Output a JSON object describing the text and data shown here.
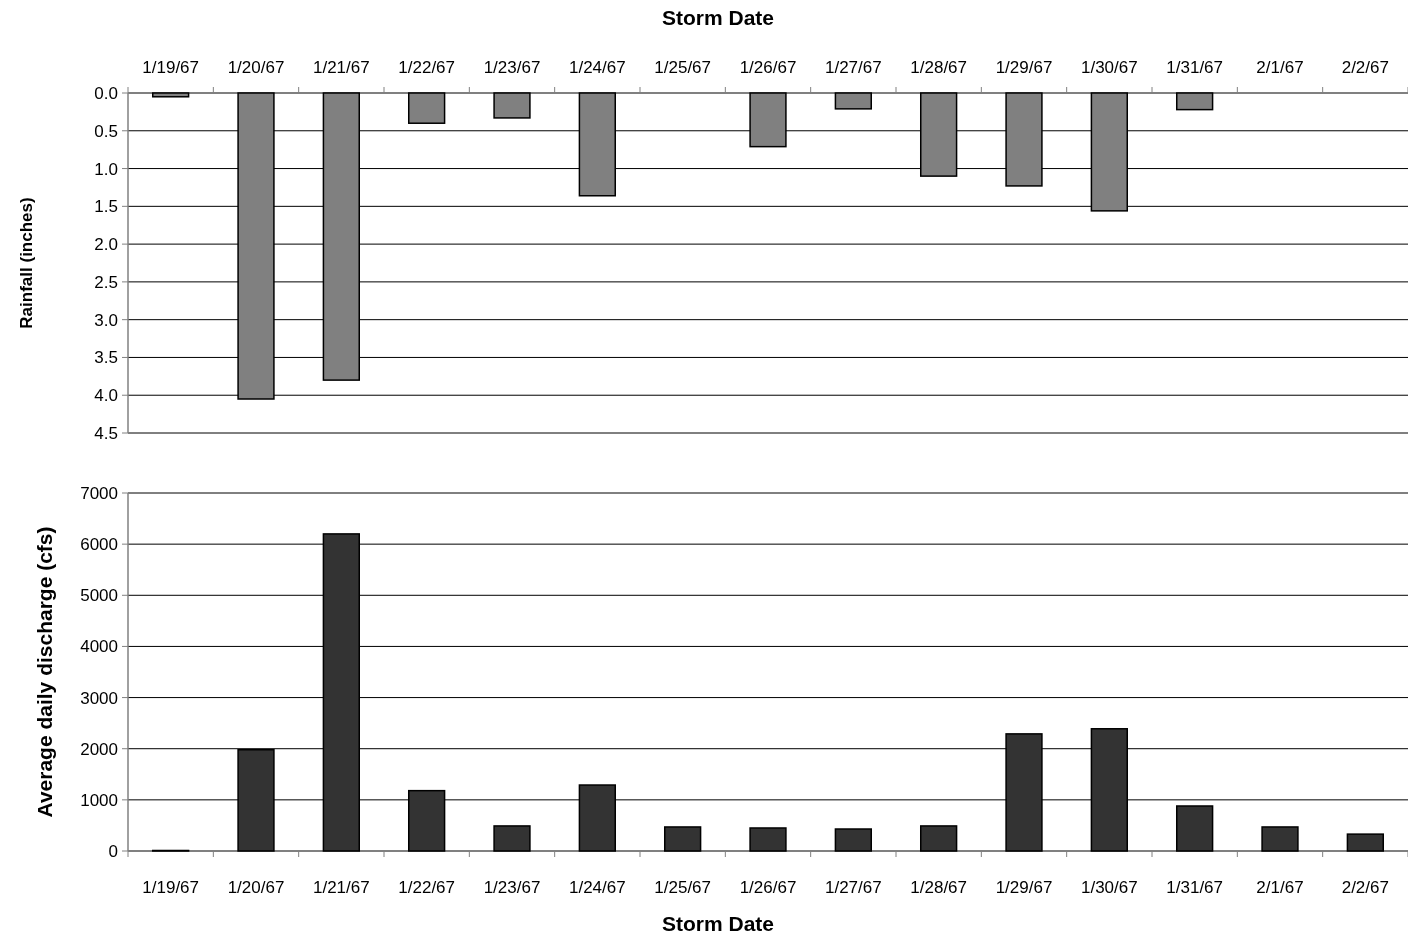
{
  "chart_data": [
    {
      "type": "bar",
      "xlabel": "Storm Date",
      "ylabel": "Rainfall (inches)",
      "categories": [
        "1/19/67",
        "1/20/67",
        "1/21/67",
        "1/22/67",
        "1/23/67",
        "1/24/67",
        "1/25/67",
        "1/26/67",
        "1/27/67",
        "1/28/67",
        "1/29/67",
        "1/30/67",
        "1/31/67",
        "2/1/67",
        "2/2/67"
      ],
      "series": [
        {
          "color": "#808080",
          "values": [
            0.05,
            4.05,
            3.8,
            0.4,
            0.33,
            1.36,
            null,
            0.71,
            0.21,
            1.1,
            1.23,
            1.56,
            0.22,
            null,
            null
          ]
        }
      ],
      "ylim": [
        4.5,
        0
      ],
      "yticks": [
        {
          "value": 0,
          "label": "0.0"
        },
        0.5,
        {
          "value": 1,
          "label": "1.0"
        },
        1.5,
        {
          "value": 2,
          "label": "2.0"
        },
        2.5,
        {
          "value": 3,
          "label": "3.0"
        },
        3.5,
        {
          "value": 4,
          "label": "4.0"
        },
        4.5
      ],
      "grid": "y"
    },
    {
      "type": "bar",
      "xlabel": "Storm Date",
      "ylabel": "Average daily discharge (cfs)",
      "categories": [
        "1/19/67",
        "1/20/67",
        "1/21/67",
        "1/22/67",
        "1/23/67",
        "1/24/67",
        "1/25/67",
        "1/26/67",
        "1/27/67",
        "1/28/67",
        "1/29/67",
        "1/30/67",
        "1/31/67",
        "2/1/67",
        "2/2/67"
      ],
      "series": [
        {
          "color": "#333333",
          "values": [
            10,
            1980,
            6200,
            1180,
            490,
            1290,
            470,
            450,
            430,
            490,
            2290,
            2390,
            880,
            470,
            330
          ]
        }
      ],
      "ylim": [
        0,
        7000
      ],
      "yticks": [
        0,
        1000,
        2000,
        3000,
        4000,
        5000,
        6000,
        7000
      ],
      "grid": "y"
    }
  ]
}
